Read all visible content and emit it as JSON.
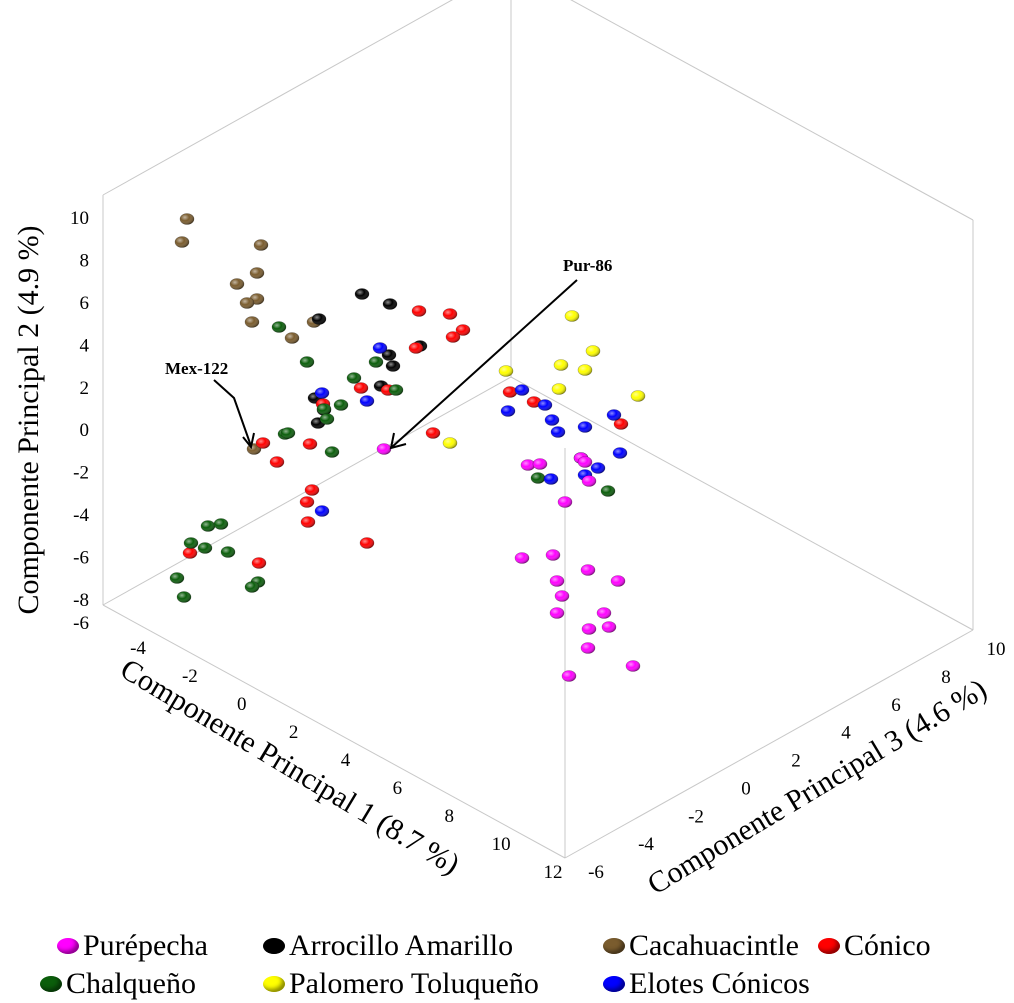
{
  "chart_data": {
    "type": "scatter3d",
    "axes": {
      "x": {
        "label": "Componente Principal 1 (8.7 %)",
        "ticks": [
          "-4",
          "-2",
          "0",
          "2",
          "4",
          "6",
          "8",
          "10",
          "12"
        ],
        "range": [
          -4,
          12
        ]
      },
      "y": {
        "label": "Componente Principal 2 (4.9 %)",
        "ticks": [
          "-8",
          "-6",
          "-4",
          "-2",
          "0",
          "2",
          "4",
          "6",
          "8",
          "10"
        ],
        "range": [
          -8,
          10
        ]
      },
      "z": {
        "label": "Componente Principal 3 (4.6 %)",
        "ticks": [
          "-6",
          "-4",
          "-2",
          "0",
          "2",
          "4",
          "6",
          "8",
          "10"
        ],
        "range": [
          -6,
          10
        ]
      },
      "y_extra_tick": "-6"
    },
    "annotations": [
      {
        "text": "Mex-122",
        "series": "Cacahuacintle"
      },
      {
        "text": "Pur-86",
        "series": "Purépecha"
      }
    ],
    "legend_position": "bottom",
    "series": [
      {
        "name": "Purépecha",
        "color": "#ff00ff"
      },
      {
        "name": "Arrocillo Amarillo",
        "color": "#000000"
      },
      {
        "name": "Cacahuacintle",
        "color": "#7a5c2e"
      },
      {
        "name": "Cónico",
        "color": "#ff0000"
      },
      {
        "name": "Chalqueño",
        "color": "#0b5e0b"
      },
      {
        "name": "Palomero Toluqueño",
        "color": "#ffff00"
      },
      {
        "name": "Elotes Cónicos",
        "color": "#0000ff"
      }
    ]
  }
}
